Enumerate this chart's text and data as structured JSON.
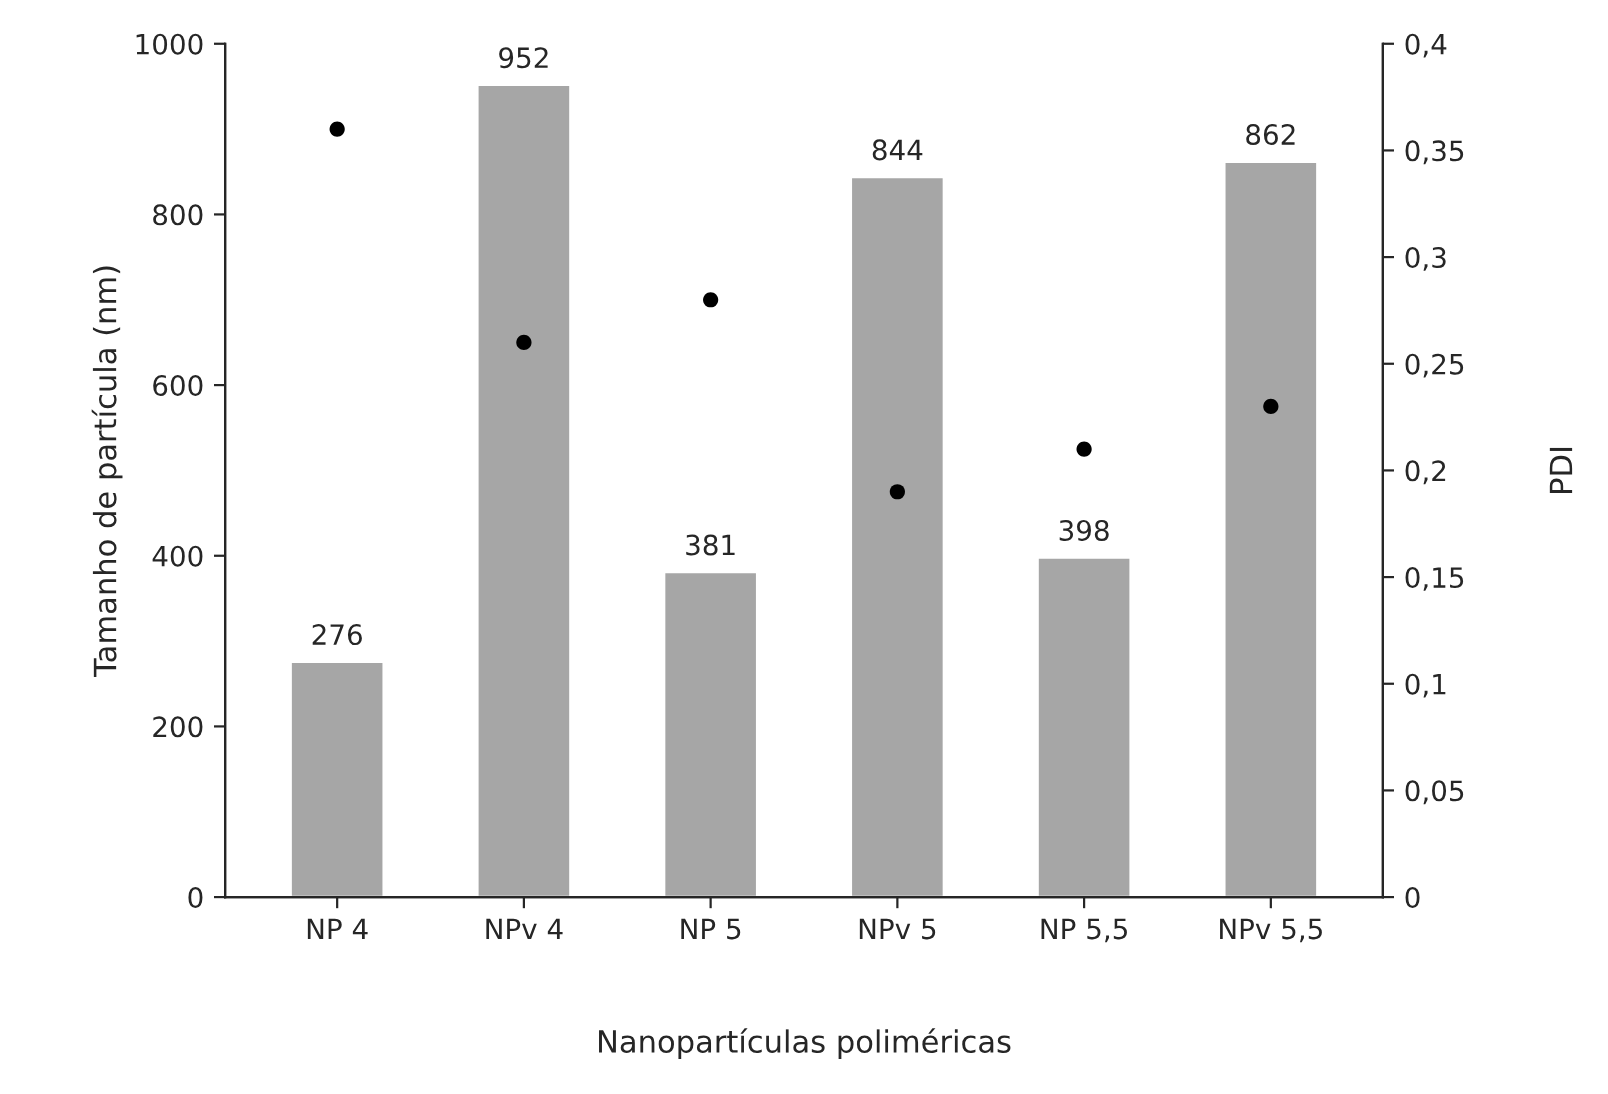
{
  "chart_data": {
    "type": "bar",
    "xlabel": "Nanopartículas poliméricas",
    "ylabel": "Tamanho de partícula (nm)",
    "y2label": "PDI",
    "categories": [
      "NP 4",
      "NPv 4",
      "NP 5",
      "NPv 5",
      "NP 5,5",
      "NPv 5,5"
    ],
    "series": [
      {
        "color": "#a6a6a6",
        "values": [
          276,
          952,
          381,
          844,
          398,
          862
        ],
        "value_labels": [
          "276",
          "952",
          "381",
          "844",
          "398",
          "862"
        ]
      },
      {
        "type": "scatter",
        "axis": "y2",
        "color": "#000000",
        "marker": "circle",
        "values": [
          0.36,
          0.26,
          0.28,
          0.19,
          0.21,
          0.23
        ]
      }
    ],
    "ylim": [
      0,
      1000
    ],
    "yticks": [
      0,
      200,
      400,
      600,
      800,
      1000
    ],
    "y2lim": [
      0,
      0.4
    ],
    "y2ticks": [
      {
        "value": 0,
        "label": "0"
      },
      {
        "value": 0.05,
        "label": "0,05"
      },
      {
        "value": 0.1,
        "label": "0,1"
      },
      {
        "value": 0.15,
        "label": "0,15"
      },
      {
        "value": 0.2,
        "label": "0,2"
      },
      {
        "value": 0.25,
        "label": "0,25"
      },
      {
        "value": 0.3,
        "label": "0,3"
      },
      {
        "value": 0.35,
        "label": "0,35"
      },
      {
        "value": 0.4,
        "label": "0,4"
      }
    ],
    "grid": false,
    "legend": false
  }
}
